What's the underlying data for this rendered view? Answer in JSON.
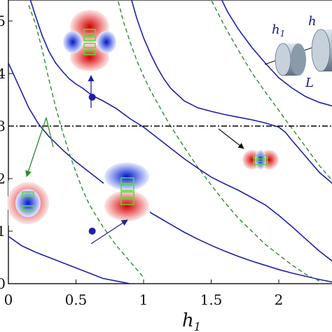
{
  "chart_data": {
    "type": "line",
    "xlabel": "h",
    "xlabel_sub": "1",
    "ylabel": "",
    "xlim": [
      0,
      2.4
    ],
    "ylim": [
      0,
      5.5
    ],
    "x_ticks": [
      {
        "value": 0,
        "label": "0"
      },
      {
        "value": 0.5,
        "label": "0.5"
      },
      {
        "value": 1,
        "label": "1"
      },
      {
        "value": 1.5,
        "label": "1.5"
      },
      {
        "value": 2,
        "label": "2"
      }
    ],
    "y_ticks": [
      {
        "value": 0,
        "label": "0"
      },
      {
        "value": 1,
        "label": "1"
      },
      {
        "value": 2,
        "label": "2"
      },
      {
        "value": 3,
        "label": "3"
      },
      {
        "value": 4,
        "label": "4"
      },
      {
        "value": 5,
        "label": "5"
      }
    ],
    "grid": false,
    "horizontal_reference": {
      "y": 3.0,
      "style": "dash-dot",
      "color": "#000000"
    },
    "series": [
      {
        "style": "solid",
        "color": "#1f1fa8",
        "points": [
          [
            0.0,
            0.9
          ],
          [
            0.1,
            0.72
          ],
          [
            0.2,
            0.6
          ],
          [
            0.3,
            0.5
          ],
          [
            0.4,
            0.4
          ],
          [
            0.5,
            0.3
          ],
          [
            0.6,
            0.2
          ],
          [
            0.7,
            0.1
          ],
          [
            0.8,
            0.05
          ],
          [
            0.9,
            0.0
          ]
        ]
      },
      {
        "style": "solid",
        "color": "#1f1fa8",
        "points": [
          [
            0.0,
            4.2
          ],
          [
            0.08,
            3.75
          ],
          [
            0.15,
            3.35
          ],
          [
            0.22,
            3.05
          ],
          [
            0.3,
            2.8
          ],
          [
            0.4,
            2.55
          ],
          [
            0.5,
            2.32
          ],
          [
            0.6,
            2.12
          ],
          [
            0.7,
            1.92
          ],
          [
            0.8,
            1.75
          ],
          [
            0.9,
            1.6
          ],
          [
            1.0,
            1.43
          ],
          [
            1.1,
            1.28
          ],
          [
            1.2,
            1.13
          ],
          [
            1.3,
            0.98
          ],
          [
            1.4,
            0.85
          ],
          [
            1.5,
            0.73
          ],
          [
            1.6,
            0.62
          ],
          [
            1.7,
            0.52
          ],
          [
            1.8,
            0.43
          ],
          [
            1.9,
            0.35
          ],
          [
            2.0,
            0.27
          ],
          [
            2.1,
            0.2
          ],
          [
            2.2,
            0.14
          ],
          [
            2.3,
            0.08
          ],
          [
            2.4,
            0.03
          ]
        ]
      },
      {
        "style": "solid",
        "color": "#1f1fa8",
        "points": [
          [
            0.15,
            5.5
          ],
          [
            0.2,
            5.1
          ],
          [
            0.25,
            4.72
          ],
          [
            0.3,
            4.42
          ],
          [
            0.35,
            4.2
          ],
          [
            0.4,
            4.04
          ],
          [
            0.45,
            3.9
          ],
          [
            0.5,
            3.8
          ],
          [
            0.55,
            3.72
          ],
          [
            0.62,
            3.58
          ],
          [
            0.7,
            3.48
          ],
          [
            0.8,
            3.33
          ],
          [
            0.9,
            3.14
          ],
          [
            1.0,
            2.98
          ],
          [
            1.1,
            2.78
          ],
          [
            1.2,
            2.58
          ],
          [
            1.3,
            2.38
          ],
          [
            1.4,
            2.2
          ],
          [
            1.5,
            2.03
          ],
          [
            1.6,
            1.9
          ],
          [
            1.7,
            1.78
          ],
          [
            1.8,
            1.64
          ],
          [
            1.9,
            1.5
          ],
          [
            2.0,
            1.3
          ],
          [
            2.1,
            1.08
          ],
          [
            2.2,
            0.85
          ],
          [
            2.3,
            0.62
          ],
          [
            2.4,
            0.42
          ]
        ]
      },
      {
        "style": "solid",
        "color": "#1f1fa8",
        "points": [
          [
            0.9,
            5.5
          ],
          [
            0.95,
            5.05
          ],
          [
            1.0,
            4.68
          ],
          [
            1.05,
            4.38
          ],
          [
            1.1,
            4.12
          ],
          [
            1.15,
            3.9
          ],
          [
            1.2,
            3.72
          ],
          [
            1.3,
            3.48
          ],
          [
            1.4,
            3.35
          ],
          [
            1.5,
            3.28
          ],
          [
            1.6,
            3.22
          ],
          [
            1.7,
            3.17
          ],
          [
            1.8,
            3.12
          ],
          [
            1.9,
            3.06
          ],
          [
            2.0,
            2.98
          ],
          [
            2.05,
            2.88
          ],
          [
            2.1,
            2.72
          ],
          [
            2.2,
            2.42
          ],
          [
            2.3,
            2.12
          ],
          [
            2.4,
            1.9
          ]
        ]
      },
      {
        "style": "solid",
        "color": "#1f1fa8",
        "points": [
          [
            1.56,
            5.5
          ],
          [
            1.62,
            5.18
          ],
          [
            1.7,
            4.85
          ],
          [
            1.8,
            4.5
          ],
          [
            1.9,
            4.2
          ],
          [
            2.0,
            3.92
          ],
          [
            2.1,
            3.72
          ],
          [
            2.2,
            3.56
          ],
          [
            2.3,
            3.45
          ],
          [
            2.4,
            3.38
          ]
        ]
      },
      {
        "style": "dashed",
        "color": "#2e8b2e",
        "points": [
          [
            0.15,
            5.3
          ],
          [
            0.2,
            4.95
          ],
          [
            0.25,
            4.45
          ],
          [
            0.3,
            3.88
          ],
          [
            0.35,
            3.36
          ],
          [
            0.4,
            2.9
          ],
          [
            0.45,
            2.48
          ],
          [
            0.5,
            2.12
          ],
          [
            0.55,
            1.78
          ],
          [
            0.6,
            1.5
          ],
          [
            0.7,
            1.08
          ],
          [
            0.8,
            0.72
          ],
          [
            0.9,
            0.42
          ],
          [
            1.0,
            0.12
          ]
        ]
      },
      {
        "style": "dashed",
        "color": "#2e8b2e",
        "points": [
          [
            0.8,
            5.5
          ],
          [
            0.85,
            5.0
          ],
          [
            0.9,
            4.6
          ],
          [
            0.95,
            4.25
          ],
          [
            1.0,
            3.95
          ],
          [
            1.05,
            3.68
          ],
          [
            1.1,
            3.45
          ],
          [
            1.15,
            3.22
          ],
          [
            1.2,
            3.0
          ],
          [
            1.3,
            2.6
          ],
          [
            1.4,
            2.22
          ],
          [
            1.5,
            1.88
          ],
          [
            1.6,
            1.55
          ],
          [
            1.7,
            1.25
          ],
          [
            1.8,
            1.0
          ],
          [
            1.9,
            0.75
          ],
          [
            2.0,
            0.55
          ],
          [
            2.1,
            0.35
          ],
          [
            2.2,
            0.18
          ],
          [
            2.3,
            0.05
          ]
        ]
      },
      {
        "style": "dashed",
        "color": "#2e8b2e",
        "points": [
          [
            1.48,
            5.5
          ],
          [
            1.55,
            5.15
          ],
          [
            1.6,
            4.9
          ],
          [
            1.7,
            4.45
          ],
          [
            1.8,
            4.02
          ],
          [
            1.9,
            3.65
          ],
          [
            2.0,
            3.3
          ],
          [
            2.05,
            3.12
          ],
          [
            2.1,
            2.95
          ],
          [
            2.2,
            2.6
          ],
          [
            2.3,
            2.25
          ],
          [
            2.4,
            1.95
          ]
        ]
      }
    ],
    "markers": [
      {
        "x": 0.62,
        "y": 3.55,
        "color": "#1f1fa8"
      },
      {
        "x": 0.62,
        "y": 1.0,
        "color": "#1f1fa8"
      }
    ],
    "inset_labels": {
      "cyl1": "h",
      "cyl1_sub": "1",
      "cyl2": "h",
      "length": "L"
    }
  }
}
